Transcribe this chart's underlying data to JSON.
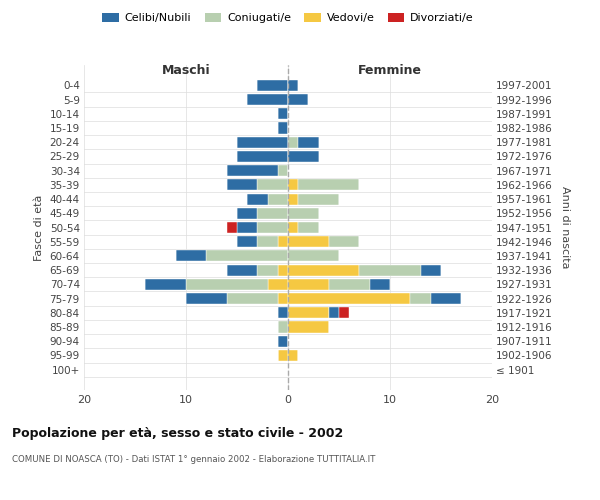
{
  "age_groups": [
    "100+",
    "95-99",
    "90-94",
    "85-89",
    "80-84",
    "75-79",
    "70-74",
    "65-69",
    "60-64",
    "55-59",
    "50-54",
    "45-49",
    "40-44",
    "35-39",
    "30-34",
    "25-29",
    "20-24",
    "15-19",
    "10-14",
    "5-9",
    "0-4"
  ],
  "birth_years": [
    "≤ 1901",
    "1902-1906",
    "1907-1911",
    "1912-1916",
    "1917-1921",
    "1922-1926",
    "1927-1931",
    "1932-1936",
    "1937-1941",
    "1942-1946",
    "1947-1951",
    "1952-1956",
    "1957-1961",
    "1962-1966",
    "1967-1971",
    "1972-1976",
    "1977-1981",
    "1982-1986",
    "1987-1991",
    "1992-1996",
    "1997-2001"
  ],
  "colors": {
    "celibe": "#2e6da4",
    "coniugato": "#b8cfb0",
    "vedovo": "#f5c842",
    "divorziato": "#cc2222"
  },
  "maschi": {
    "celibe": [
      0,
      0,
      1,
      0,
      1,
      4,
      4,
      3,
      3,
      2,
      2,
      2,
      2,
      3,
      5,
      5,
      5,
      1,
      1,
      4,
      3
    ],
    "coniugato": [
      0,
      0,
      0,
      1,
      0,
      5,
      8,
      2,
      8,
      2,
      3,
      3,
      2,
      3,
      1,
      0,
      0,
      0,
      0,
      0,
      0
    ],
    "vedovo": [
      0,
      1,
      0,
      0,
      0,
      1,
      2,
      1,
      0,
      1,
      0,
      0,
      0,
      0,
      0,
      0,
      0,
      0,
      0,
      0,
      0
    ],
    "divorziato": [
      0,
      0,
      0,
      0,
      0,
      0,
      0,
      0,
      0,
      0,
      1,
      0,
      0,
      0,
      0,
      0,
      0,
      0,
      0,
      0,
      0
    ]
  },
  "femmine": {
    "celibe": [
      0,
      0,
      0,
      0,
      1,
      3,
      2,
      2,
      0,
      0,
      0,
      0,
      0,
      0,
      0,
      3,
      2,
      0,
      0,
      2,
      1
    ],
    "coniugato": [
      0,
      0,
      0,
      0,
      0,
      2,
      4,
      6,
      5,
      3,
      2,
      3,
      4,
      6,
      0,
      0,
      1,
      0,
      0,
      0,
      0
    ],
    "vedovo": [
      0,
      1,
      0,
      4,
      4,
      12,
      4,
      7,
      0,
      4,
      1,
      0,
      1,
      1,
      0,
      0,
      0,
      0,
      0,
      0,
      0
    ],
    "divorziato": [
      0,
      0,
      0,
      0,
      1,
      0,
      0,
      0,
      0,
      0,
      0,
      0,
      0,
      0,
      0,
      0,
      0,
      0,
      0,
      0,
      0
    ]
  },
  "title": "Popolazione per età, sesso e stato civile - 2002",
  "subtitle": "COMUNE DI NOASCA (TO) - Dati ISTAT 1° gennaio 2002 - Elaborazione TUTTITALIA.IT",
  "ylabel_left": "Fasce di età",
  "ylabel_right": "Anni di nascita",
  "xlabel_left": "Maschi",
  "xlabel_right": "Femmine",
  "xlim": 20,
  "background_color": "#ffffff"
}
